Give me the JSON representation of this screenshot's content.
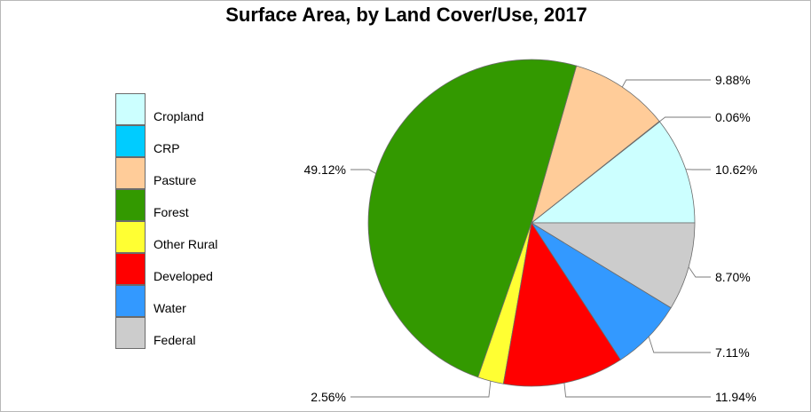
{
  "chart_data": {
    "type": "pie",
    "title": "Surface Area, by Land Cover/Use, 2017",
    "legend_position": "left",
    "slices": [
      {
        "label": "Cropland",
        "value": 10.62,
        "value_label": "10.62%",
        "color": "#ccffff"
      },
      {
        "label": "CRP",
        "value": 0.06,
        "value_label": "0.06%",
        "color": "#00ccff"
      },
      {
        "label": "Pasture",
        "value": 9.88,
        "value_label": "9.88%",
        "color": "#ffcc99"
      },
      {
        "label": "Forest",
        "value": 49.12,
        "value_label": "49.12%",
        "color": "#339900"
      },
      {
        "label": "Other Rural",
        "value": 2.56,
        "value_label": "2.56%",
        "color": "#ffff33"
      },
      {
        "label": "Developed",
        "value": 11.94,
        "value_label": "11.94%",
        "color": "#ff0000"
      },
      {
        "label": "Water",
        "value": 7.11,
        "value_label": "7.11%",
        "color": "#3399ff"
      },
      {
        "label": "Federal",
        "value": 8.7,
        "value_label": "8.70%",
        "color": "#cccccc"
      }
    ]
  }
}
